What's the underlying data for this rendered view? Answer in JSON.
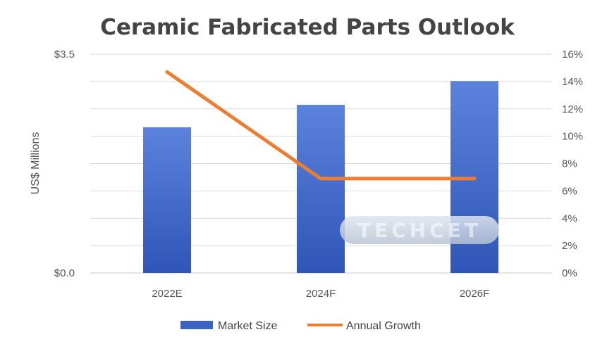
{
  "chart_data": {
    "type": "bar",
    "title": "Ceramic Fabricated Parts Outlook",
    "ylabel": "US$ Millions",
    "categories": [
      "2022E",
      "2024F",
      "2026F"
    ],
    "ylim": [
      0,
      3.5
    ],
    "y_ticks_left": [
      "$3.5",
      "$0.0"
    ],
    "y2lim": [
      0,
      16
    ],
    "y_ticks_right": [
      "16%",
      "14%",
      "12%",
      "10%",
      "8%",
      "6%",
      "4%",
      "2%",
      "0%"
    ],
    "series": [
      {
        "name": "Market Size",
        "type": "bar",
        "axis": "left",
        "values": [
          2.33,
          2.69,
          3.07
        ]
      },
      {
        "name": "Annual Growth",
        "type": "line",
        "axis": "right",
        "values": [
          14.7,
          6.9,
          6.9
        ]
      }
    ],
    "gridlines": true,
    "legend_position": "bottom",
    "colors": {
      "bar": "#3a63c4",
      "bar_light": "#5b83dc",
      "line": "#ed7d31",
      "grid": "#d9d9d9"
    },
    "watermark": "TECHCET"
  }
}
